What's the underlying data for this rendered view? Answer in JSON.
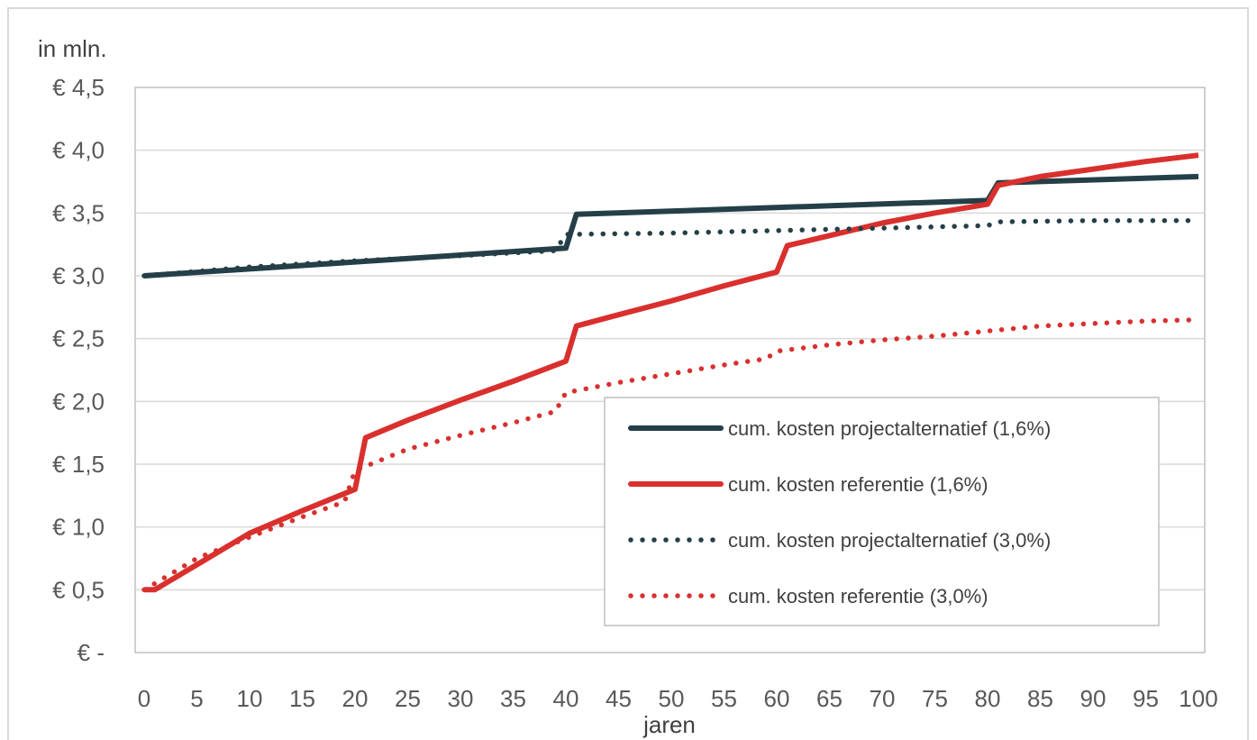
{
  "chart_data": {
    "type": "line",
    "title": "",
    "unit_label": "in mln.",
    "xlabel": "jaren",
    "ylabel": "",
    "xlim": [
      0,
      100
    ],
    "ylim": [
      0,
      4.5
    ],
    "x_ticks": [
      0,
      5,
      10,
      15,
      20,
      25,
      30,
      35,
      40,
      45,
      50,
      55,
      60,
      65,
      70,
      75,
      80,
      85,
      90,
      95,
      100
    ],
    "y_ticks": [
      {
        "value": 0,
        "label": "€ -"
      },
      {
        "value": 0.5,
        "label": "€ 0,5"
      },
      {
        "value": 1.0,
        "label": "€ 1,0"
      },
      {
        "value": 1.5,
        "label": "€ 1,5"
      },
      {
        "value": 2.0,
        "label": "€ 2,0"
      },
      {
        "value": 2.5,
        "label": "€ 2,5"
      },
      {
        "value": 3.0,
        "label": "€ 3,0"
      },
      {
        "value": 3.5,
        "label": "€ 3,5"
      },
      {
        "value": 4.0,
        "label": "€ 4,0"
      },
      {
        "value": 4.5,
        "label": "€ 4,5"
      }
    ],
    "grid": "horizontal",
    "legend_position": "inside-bottom-right",
    "series": [
      {
        "name": "cum. kosten projectalternatief (1,6%)",
        "color": "#243f47",
        "style": "solid",
        "x": [
          0,
          40,
          41,
          80,
          81,
          100
        ],
        "y": [
          3.0,
          3.22,
          3.49,
          3.6,
          3.74,
          3.79
        ]
      },
      {
        "name": "cum. kosten referentie (1,6%)",
        "color": "#d9302e",
        "style": "solid",
        "x": [
          0,
          1,
          5,
          10,
          15,
          20,
          21,
          25,
          30,
          35,
          40,
          41,
          45,
          50,
          55,
          60,
          61,
          65,
          70,
          75,
          80,
          81,
          85,
          90,
          95,
          100
        ],
        "y": [
          0.5,
          0.5,
          0.7,
          0.95,
          1.13,
          1.3,
          1.71,
          1.85,
          2.01,
          2.16,
          2.32,
          2.6,
          2.69,
          2.8,
          2.92,
          3.03,
          3.24,
          3.32,
          3.42,
          3.5,
          3.57,
          3.72,
          3.79,
          3.85,
          3.91,
          3.96
        ]
      },
      {
        "name": "cum. kosten projectalternatief (3,0%)",
        "color": "#243f47",
        "style": "dotted",
        "x": [
          0,
          10,
          20,
          30,
          39,
          40,
          50,
          60,
          70,
          80,
          81,
          90,
          100
        ],
        "y": [
          3.0,
          3.07,
          3.12,
          3.16,
          3.2,
          3.33,
          3.34,
          3.36,
          3.38,
          3.4,
          3.43,
          3.44,
          3.44
        ]
      },
      {
        "name": "cum. kosten referentie (3,0%)",
        "color": "#d9302e",
        "style": "dotted",
        "x": [
          0,
          1,
          5,
          10,
          15,
          19,
          20,
          25,
          30,
          35,
          39,
          40,
          45,
          50,
          55,
          59,
          60,
          65,
          70,
          75,
          80,
          85,
          90,
          95,
          100
        ],
        "y": [
          0.5,
          0.55,
          0.75,
          0.92,
          1.08,
          1.2,
          1.45,
          1.62,
          1.73,
          1.83,
          1.92,
          2.07,
          2.15,
          2.22,
          2.29,
          2.34,
          2.4,
          2.45,
          2.49,
          2.52,
          2.56,
          2.6,
          2.62,
          2.64,
          2.65
        ]
      }
    ]
  }
}
